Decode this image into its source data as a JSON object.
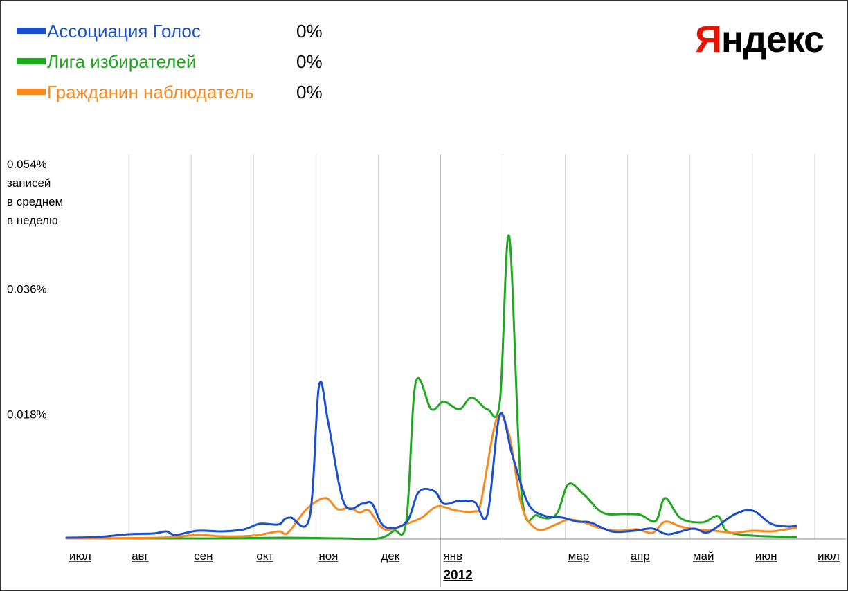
{
  "logo": {
    "first": "Я",
    "rest": "ндекс"
  },
  "legend": [
    {
      "name": "Ассоциация Голос",
      "value": "0%",
      "color": "#1a4fd0"
    },
    {
      "name": "Лига избирателей",
      "value": "0%",
      "color": "#21a821"
    },
    {
      "name": "Гражданин наблюдатель",
      "value": "0%",
      "color": "#f7891e"
    }
  ],
  "chart_data": {
    "type": "line",
    "y_unit_label": [
      "записей",
      "в среднем",
      "в неделю"
    ],
    "y_ticks": [
      {
        "value": 0.054,
        "label": "0.054%"
      },
      {
        "value": 0.036,
        "label": "0.036%"
      },
      {
        "value": 0.018,
        "label": "0.018%"
      }
    ],
    "ylim": [
      0,
      0.054
    ],
    "x_range": [
      0,
      12.5
    ],
    "x_ticks": [
      "июл",
      "авг",
      "сен",
      "окт",
      "ноя",
      "дек",
      "янв",
      "мар",
      "апр",
      "май",
      "июн",
      "июл"
    ],
    "x_tick_positions": [
      0,
      1,
      2,
      3,
      4,
      5,
      6,
      8,
      9,
      10,
      11,
      12
    ],
    "x_year": {
      "label": "2012",
      "position": 6
    },
    "grid": true,
    "series": [
      {
        "name": "Ассоциация Голос",
        "color": "#1a4fd0",
        "points": [
          [
            0,
            0.0002
          ],
          [
            0.5,
            0.0003
          ],
          [
            1,
            0.0007
          ],
          [
            1.4,
            0.0008
          ],
          [
            1.6,
            0.0011
          ],
          [
            1.75,
            0.0006
          ],
          [
            2.1,
            0.0012
          ],
          [
            2.5,
            0.0011
          ],
          [
            2.85,
            0.0014
          ],
          [
            3.1,
            0.0022
          ],
          [
            3.4,
            0.0021
          ],
          [
            3.5,
            0.0029
          ],
          [
            3.6,
            0.0031
          ],
          [
            3.9,
            0.0032
          ],
          [
            4.05,
            0.0221
          ],
          [
            4.2,
            0.0167
          ],
          [
            4.45,
            0.0052
          ],
          [
            4.75,
            0.0051
          ],
          [
            4.9,
            0.0051
          ],
          [
            5.1,
            0.0018
          ],
          [
            5.45,
            0.0024
          ],
          [
            5.65,
            0.0068
          ],
          [
            5.9,
            0.0069
          ],
          [
            6.05,
            0.0051
          ],
          [
            6.3,
            0.0055
          ],
          [
            6.55,
            0.0053
          ],
          [
            6.75,
            0.0035
          ],
          [
            6.95,
            0.0179
          ],
          [
            7.15,
            0.0121
          ],
          [
            7.4,
            0.0052
          ],
          [
            7.65,
            0.0034
          ],
          [
            7.95,
            0.0031
          ],
          [
            8.2,
            0.0025
          ],
          [
            8.4,
            0.0024
          ],
          [
            8.75,
            0.0011
          ],
          [
            9.1,
            0.0012
          ],
          [
            9.4,
            0.0015
          ],
          [
            9.65,
            0.0007
          ],
          [
            10.05,
            0.0015
          ],
          [
            10.3,
            0.001
          ],
          [
            10.7,
            0.0035
          ],
          [
            11.0,
            0.0041
          ],
          [
            11.3,
            0.0022
          ],
          [
            11.55,
            0.0018
          ],
          [
            11.7,
            0.0019
          ]
        ]
      },
      {
        "name": "Лига избирателей",
        "color": "#21a821",
        "points": [
          [
            0,
            0.0001
          ],
          [
            1.5,
            0.0001
          ],
          [
            2.5,
            0.0001
          ],
          [
            3.5,
            0.0002
          ],
          [
            4.4,
            0.0001
          ],
          [
            5.0,
            0.0001
          ],
          [
            5.25,
            0.0012
          ],
          [
            5.45,
            0.0025
          ],
          [
            5.6,
            0.0225
          ],
          [
            5.85,
            0.0187
          ],
          [
            6.05,
            0.0198
          ],
          [
            6.3,
            0.0187
          ],
          [
            6.5,
            0.0204
          ],
          [
            6.75,
            0.0187
          ],
          [
            6.95,
            0.0198
          ],
          [
            7.1,
            0.0436
          ],
          [
            7.3,
            0.0065
          ],
          [
            7.55,
            0.0034
          ],
          [
            7.85,
            0.0035
          ],
          [
            8.05,
            0.0079
          ],
          [
            8.3,
            0.0064
          ],
          [
            8.6,
            0.0038
          ],
          [
            8.95,
            0.0036
          ],
          [
            9.2,
            0.0035
          ],
          [
            9.45,
            0.0026
          ],
          [
            9.6,
            0.0059
          ],
          [
            9.85,
            0.003
          ],
          [
            10.2,
            0.0024
          ],
          [
            10.45,
            0.0033
          ],
          [
            10.6,
            0.0011
          ],
          [
            11.0,
            0.0005
          ],
          [
            11.7,
            0.0003
          ]
        ]
      },
      {
        "name": "Гражданин наблюдатель",
        "color": "#f7891e",
        "points": [
          [
            0,
            0.0001
          ],
          [
            1.5,
            0.0002
          ],
          [
            2.1,
            0.0006
          ],
          [
            2.5,
            0.0004
          ],
          [
            3.0,
            0.0005
          ],
          [
            3.4,
            0.0011
          ],
          [
            3.55,
            0.0009
          ],
          [
            3.85,
            0.0043
          ],
          [
            4.15,
            0.0059
          ],
          [
            4.35,
            0.0043
          ],
          [
            4.55,
            0.0045
          ],
          [
            4.7,
            0.0038
          ],
          [
            4.85,
            0.0041
          ],
          [
            5.1,
            0.0014
          ],
          [
            5.45,
            0.0022
          ],
          [
            5.7,
            0.0031
          ],
          [
            5.95,
            0.0047
          ],
          [
            6.25,
            0.0041
          ],
          [
            6.55,
            0.004
          ],
          [
            6.65,
            0.0054
          ],
          [
            6.9,
            0.0173
          ],
          [
            7.1,
            0.015
          ],
          [
            7.3,
            0.0048
          ],
          [
            7.55,
            0.0014
          ],
          [
            7.85,
            0.0021
          ],
          [
            8.05,
            0.0028
          ],
          [
            8.3,
            0.0024
          ],
          [
            8.55,
            0.0016
          ],
          [
            8.85,
            0.0012
          ],
          [
            9.15,
            0.0014
          ],
          [
            9.4,
            0.0009
          ],
          [
            9.6,
            0.0025
          ],
          [
            9.85,
            0.0018
          ],
          [
            10.1,
            0.0014
          ],
          [
            10.4,
            0.0012
          ],
          [
            10.7,
            0.0009
          ],
          [
            11.0,
            0.0012
          ],
          [
            11.3,
            0.0011
          ],
          [
            11.55,
            0.0014
          ],
          [
            11.7,
            0.0016
          ]
        ]
      }
    ]
  }
}
